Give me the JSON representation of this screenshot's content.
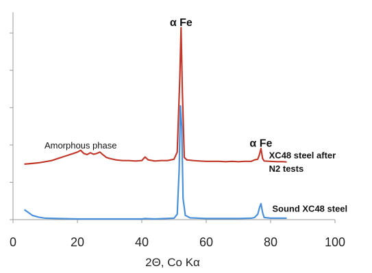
{
  "chart_data": {
    "type": "line",
    "xlabel": "2Θ, Co Kα",
    "ylabel": "",
    "xlim": [
      0,
      100
    ],
    "xticks": [
      0,
      20,
      40,
      60,
      80,
      100
    ],
    "ylim": [
      0,
      5.6
    ],
    "y_ticks_labeled": false,
    "grid": false,
    "legend": "none",
    "series": [
      {
        "name": "XC48 steel after N2 tests",
        "color": "#c0392b",
        "points": [
          [
            3.5,
            1.56
          ],
          [
            6,
            1.58
          ],
          [
            8,
            1.6
          ],
          [
            10,
            1.63
          ],
          [
            12,
            1.66
          ],
          [
            14,
            1.72
          ],
          [
            16,
            1.78
          ],
          [
            18,
            1.84
          ],
          [
            20,
            1.9
          ],
          [
            21,
            1.95
          ],
          [
            22,
            1.86
          ],
          [
            23,
            1.83
          ],
          [
            24,
            1.88
          ],
          [
            25,
            1.84
          ],
          [
            26,
            1.86
          ],
          [
            27,
            1.9
          ],
          [
            28,
            1.82
          ],
          [
            29,
            1.75
          ],
          [
            30,
            1.72
          ],
          [
            32,
            1.68
          ],
          [
            34,
            1.66
          ],
          [
            36,
            1.66
          ],
          [
            38,
            1.65
          ],
          [
            40,
            1.66
          ],
          [
            41,
            1.76
          ],
          [
            42,
            1.68
          ],
          [
            44,
            1.65
          ],
          [
            46,
            1.66
          ],
          [
            48,
            1.66
          ],
          [
            50,
            1.7
          ],
          [
            51,
            1.9
          ],
          [
            51.8,
            4.0
          ],
          [
            52.2,
            5.4
          ],
          [
            52.6,
            3.6
          ],
          [
            53.2,
            1.75
          ],
          [
            54,
            1.68
          ],
          [
            56,
            1.66
          ],
          [
            58,
            1.65
          ],
          [
            60,
            1.64
          ],
          [
            62,
            1.64
          ],
          [
            64,
            1.64
          ],
          [
            66,
            1.63
          ],
          [
            68,
            1.64
          ],
          [
            70,
            1.63
          ],
          [
            72,
            1.64
          ],
          [
            74,
            1.64
          ],
          [
            75,
            1.68
          ],
          [
            76,
            1.7
          ],
          [
            76.5,
            1.82
          ],
          [
            77,
            2.0
          ],
          [
            77.5,
            1.72
          ],
          [
            78,
            1.65
          ],
          [
            80,
            1.64
          ],
          [
            82,
            1.63
          ],
          [
            84,
            1.63
          ],
          [
            85,
            1.62
          ]
        ]
      },
      {
        "name": "Sound XC48 steel",
        "color": "#4a90d9",
        "points": [
          [
            3.5,
            0.28
          ],
          [
            4.5,
            0.22
          ],
          [
            6,
            0.12
          ],
          [
            8,
            0.07
          ],
          [
            10,
            0.04
          ],
          [
            14,
            0.03
          ],
          [
            20,
            0.02
          ],
          [
            30,
            0.02
          ],
          [
            40,
            0.02
          ],
          [
            41,
            0.03
          ],
          [
            44,
            0.02
          ],
          [
            50,
            0.04
          ],
          [
            51,
            0.15
          ],
          [
            51.6,
            1.4
          ],
          [
            52.0,
            3.2
          ],
          [
            52.4,
            2.6
          ],
          [
            52.8,
            0.6
          ],
          [
            53.5,
            0.12
          ],
          [
            55,
            0.05
          ],
          [
            60,
            0.03
          ],
          [
            65,
            0.03
          ],
          [
            70,
            0.03
          ],
          [
            74,
            0.04
          ],
          [
            75,
            0.06
          ],
          [
            76,
            0.15
          ],
          [
            76.6,
            0.35
          ],
          [
            77,
            0.45
          ],
          [
            77.5,
            0.2
          ],
          [
            78,
            0.06
          ],
          [
            80,
            0.04
          ],
          [
            82,
            0.04
          ],
          [
            84,
            0.04
          ],
          [
            85,
            0.04
          ]
        ]
      }
    ],
    "annotations": [
      {
        "text": "α Fe",
        "x": 52.2,
        "y": 5.45,
        "bold": true
      },
      {
        "text": "α Fe",
        "x": 77,
        "y": 2.05,
        "bold": true
      },
      {
        "text": "Amorphous phase",
        "x": 21,
        "y": 2.0,
        "bold": false
      },
      {
        "text": "XC48 steel after",
        "x": 79.5,
        "y": 1.72,
        "bold": true
      },
      {
        "text": "N2 tests",
        "x": 79.5,
        "y": 1.35,
        "bold": true
      },
      {
        "text": "Sound XC48 steel",
        "x": 80.5,
        "y": 0.22,
        "bold": true
      }
    ]
  }
}
